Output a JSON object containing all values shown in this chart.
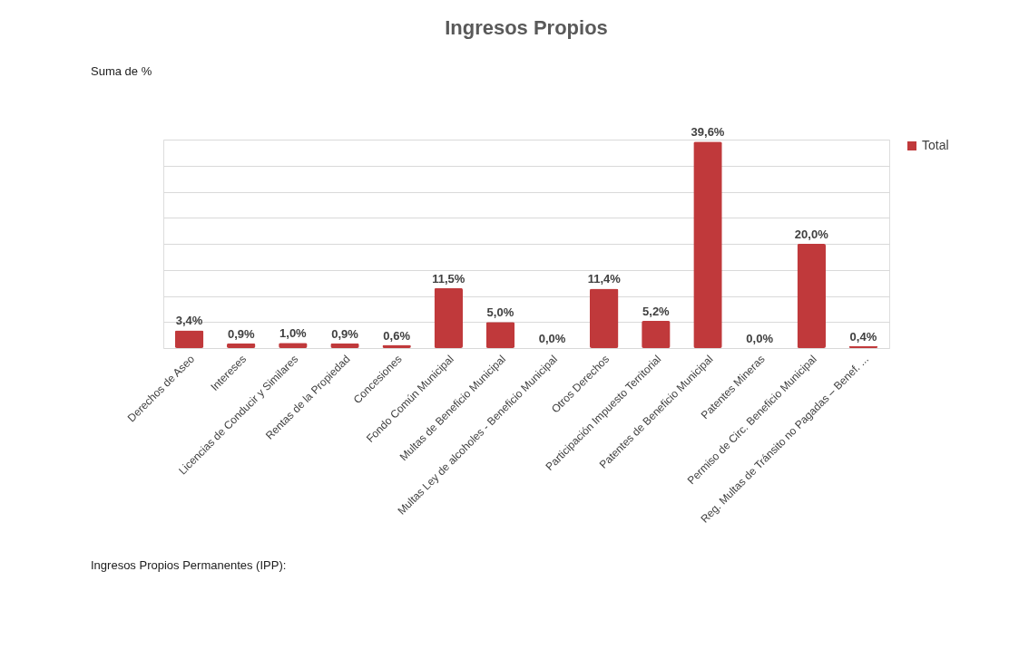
{
  "chart_data": {
    "type": "bar",
    "title": "Ingresos Propios",
    "categories": [
      "Derechos de Aseo",
      "Intereses",
      "Licencias de Conducir y Similares",
      "Rentas de la Propiedad",
      "Concesiones",
      "Fondo Común Municipal",
      "Multas de Beneficio Municipal",
      "Multas Ley de alcoholes - Beneficio Municipal",
      "Otros Derechos",
      "Participación Impuesto Territorial",
      "Patentes de Beneficio Municipal",
      "Patentes Mineras",
      "Permiso de Circ. Beneficio Municipal",
      "Reg. Multas de Tránsito no Pagadas – Benef. ..."
    ],
    "series": [
      {
        "name": "Total",
        "color": "#c0393b",
        "values": [
          3.4,
          0.9,
          1.0,
          0.9,
          0.6,
          11.5,
          5.0,
          0.0,
          11.4,
          5.2,
          39.6,
          0.0,
          20.0,
          0.4
        ],
        "value_labels": [
          "3,4%",
          "0,9%",
          "1,0%",
          "0,9%",
          "0,6%",
          "11,5%",
          "5,0%",
          "0,0%",
          "11,4%",
          "5,2%",
          "39,6%",
          "0,0%",
          "20,0%",
          "0,4%"
        ]
      }
    ],
    "ylim": [
      0,
      40
    ],
    "tick_labels": "x",
    "grid": "y",
    "legend": "right",
    "annotations": [
      "Suma de %",
      "Ingresos Propios Permanentes (IPP):"
    ]
  }
}
